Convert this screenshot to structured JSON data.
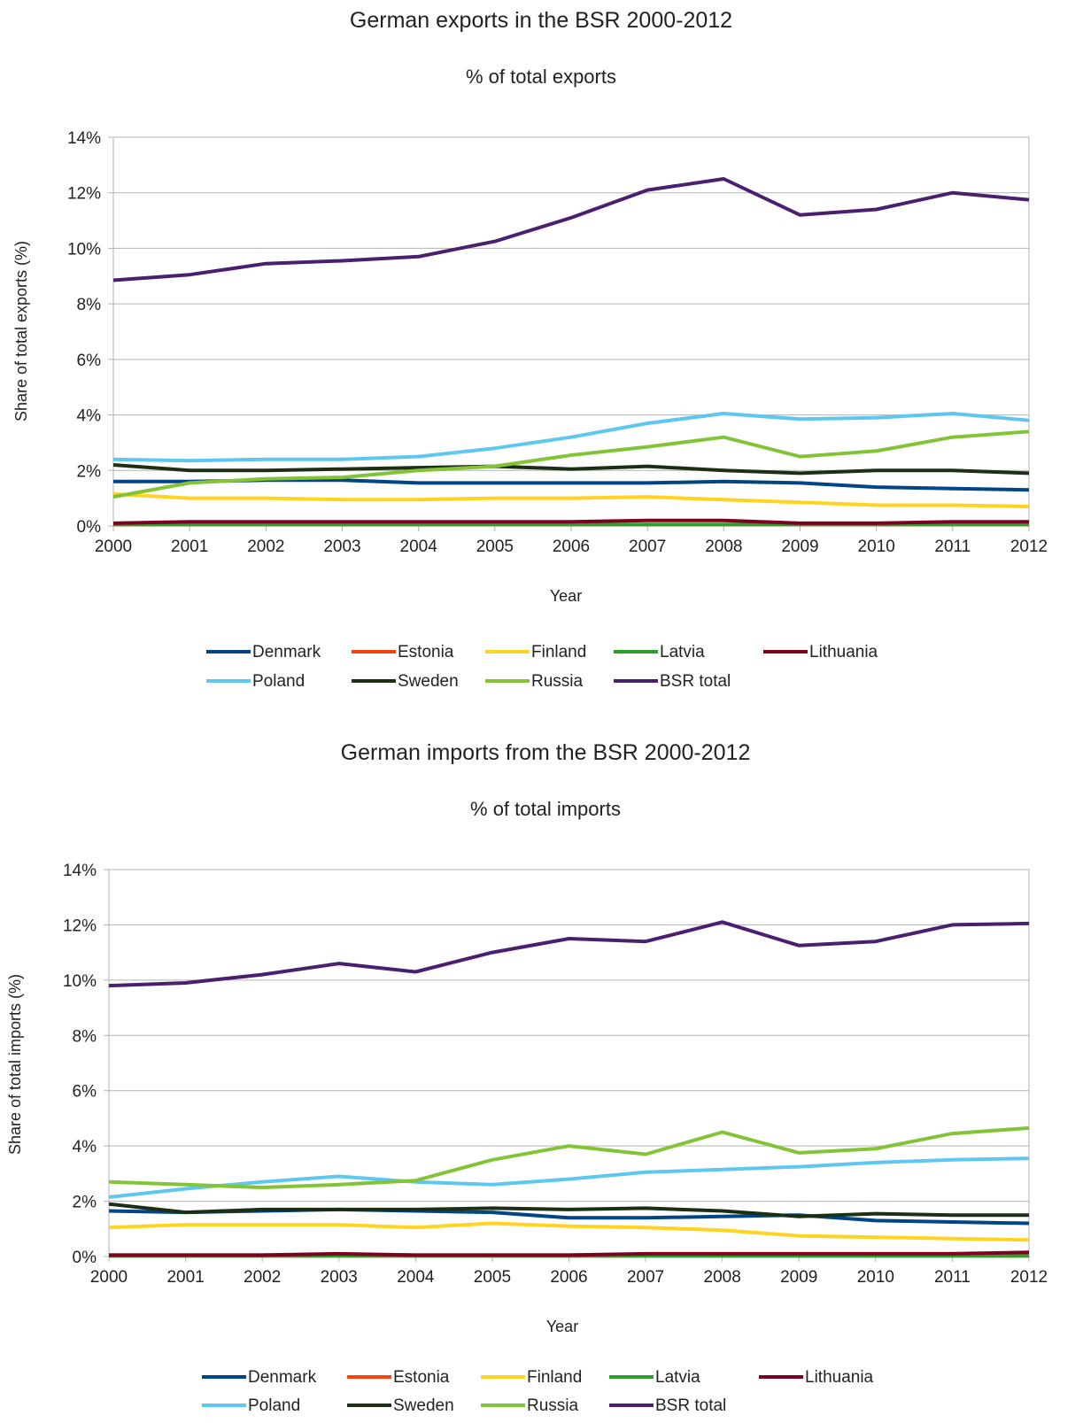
{
  "chart_data": [
    {
      "type": "line",
      "title": "German exports in the BSR 2000-2012",
      "subtitle": "% of total exports",
      "xlabel": "Year",
      "ylabel": "Share of total exports (%)",
      "x": [
        "2000",
        "2001",
        "2002",
        "2003",
        "2004",
        "2005",
        "2006",
        "2007",
        "2008",
        "2009",
        "2010",
        "2011",
        "2012"
      ],
      "ylim": [
        0,
        14
      ],
      "ytick_step": 2,
      "y_ticks": [
        "0%",
        "2%",
        "4%",
        "6%",
        "8%",
        "10%",
        "12%",
        "14%"
      ],
      "grid": true,
      "legend_position": "bottom",
      "series": [
        {
          "name": "Denmark",
          "color": "#004586",
          "values": [
            1.6,
            1.6,
            1.65,
            1.65,
            1.55,
            1.55,
            1.55,
            1.55,
            1.6,
            1.55,
            1.4,
            1.35,
            1.3
          ]
        },
        {
          "name": "Estonia",
          "color": "#ff420e",
          "values": [
            0.05,
            0.05,
            0.05,
            0.05,
            0.05,
            0.05,
            0.05,
            0.05,
            0.05,
            0.05,
            0.05,
            0.05,
            0.05
          ]
        },
        {
          "name": "Finland",
          "color": "#ffd320",
          "values": [
            1.15,
            1.0,
            1.0,
            0.95,
            0.95,
            1.0,
            1.0,
            1.05,
            0.95,
            0.85,
            0.75,
            0.75,
            0.7
          ]
        },
        {
          "name": "Latvia",
          "color": "#2ca02c",
          "values": [
            0.05,
            0.05,
            0.05,
            0.05,
            0.05,
            0.05,
            0.05,
            0.05,
            0.05,
            0.05,
            0.05,
            0.05,
            0.05
          ]
        },
        {
          "name": "Lithuania",
          "color": "#7e0021",
          "values": [
            0.1,
            0.15,
            0.15,
            0.15,
            0.15,
            0.15,
            0.15,
            0.2,
            0.2,
            0.1,
            0.1,
            0.15,
            0.15
          ]
        },
        {
          "name": "Poland",
          "color": "#5ec7f0",
          "values": [
            2.4,
            2.35,
            2.4,
            2.4,
            2.5,
            2.8,
            3.2,
            3.7,
            4.05,
            3.85,
            3.9,
            4.05,
            3.8
          ]
        },
        {
          "name": "Sweden",
          "color": "#1c2e14",
          "values": [
            2.2,
            2.0,
            2.0,
            2.05,
            2.1,
            2.15,
            2.05,
            2.15,
            2.0,
            1.9,
            2.0,
            2.0,
            1.9
          ]
        },
        {
          "name": "Russia",
          "color": "#83c436",
          "values": [
            1.05,
            1.55,
            1.7,
            1.75,
            2.0,
            2.15,
            2.55,
            2.85,
            3.2,
            2.5,
            2.7,
            3.2,
            3.4
          ]
        },
        {
          "name": "BSR total",
          "color": "#4b1f6f",
          "values": [
            8.85,
            9.05,
            9.45,
            9.55,
            9.7,
            10.25,
            11.1,
            12.1,
            12.5,
            11.2,
            11.4,
            12.0,
            11.75
          ]
        }
      ]
    },
    {
      "type": "line",
      "title": "German imports from the BSR 2000-2012",
      "subtitle": "% of total imports",
      "xlabel": "Year",
      "ylabel": "Share of total imports (%)",
      "x": [
        "2000",
        "2001",
        "2002",
        "2003",
        "2004",
        "2005",
        "2006",
        "2007",
        "2008",
        "2009",
        "2010",
        "2011",
        "2012"
      ],
      "ylim": [
        0,
        14
      ],
      "ytick_step": 2,
      "y_ticks": [
        "0%",
        "2%",
        "4%",
        "6%",
        "8%",
        "10%",
        "12%",
        "14%"
      ],
      "grid": true,
      "legend_position": "bottom",
      "series": [
        {
          "name": "Denmark",
          "color": "#004586",
          "values": [
            1.65,
            1.6,
            1.65,
            1.7,
            1.65,
            1.6,
            1.4,
            1.4,
            1.45,
            1.5,
            1.3,
            1.25,
            1.2
          ]
        },
        {
          "name": "Estonia",
          "color": "#ff420e",
          "values": [
            0.05,
            0.05,
            0.05,
            0.05,
            0.05,
            0.05,
            0.05,
            0.05,
            0.05,
            0.05,
            0.05,
            0.05,
            0.05
          ]
        },
        {
          "name": "Finland",
          "color": "#ffd320",
          "values": [
            1.05,
            1.15,
            1.15,
            1.15,
            1.05,
            1.2,
            1.1,
            1.05,
            0.95,
            0.75,
            0.7,
            0.65,
            0.6
          ]
        },
        {
          "name": "Latvia",
          "color": "#2ca02c",
          "values": [
            0.02,
            0.02,
            0.02,
            0.02,
            0.02,
            0.02,
            0.02,
            0.02,
            0.02,
            0.02,
            0.02,
            0.02,
            0.02
          ]
        },
        {
          "name": "Lithuania",
          "color": "#7e0021",
          "values": [
            0.05,
            0.05,
            0.05,
            0.1,
            0.05,
            0.05,
            0.05,
            0.1,
            0.1,
            0.1,
            0.1,
            0.1,
            0.15
          ]
        },
        {
          "name": "Poland",
          "color": "#5ec7f0",
          "values": [
            2.15,
            2.45,
            2.7,
            2.9,
            2.7,
            2.6,
            2.8,
            3.05,
            3.15,
            3.25,
            3.4,
            3.5,
            3.55
          ]
        },
        {
          "name": "Sweden",
          "color": "#1c2e14",
          "values": [
            1.9,
            1.6,
            1.7,
            1.7,
            1.7,
            1.75,
            1.7,
            1.75,
            1.65,
            1.45,
            1.55,
            1.5,
            1.5
          ]
        },
        {
          "name": "Russia",
          "color": "#83c436",
          "values": [
            2.7,
            2.6,
            2.5,
            2.6,
            2.75,
            3.5,
            4.0,
            3.7,
            4.5,
            3.75,
            3.9,
            4.45,
            4.65
          ]
        },
        {
          "name": "BSR total",
          "color": "#4b1f6f",
          "values": [
            9.8,
            9.9,
            10.2,
            10.6,
            10.3,
            11.0,
            11.5,
            11.4,
            12.1,
            11.25,
            11.4,
            12.0,
            12.05
          ]
        }
      ]
    }
  ]
}
